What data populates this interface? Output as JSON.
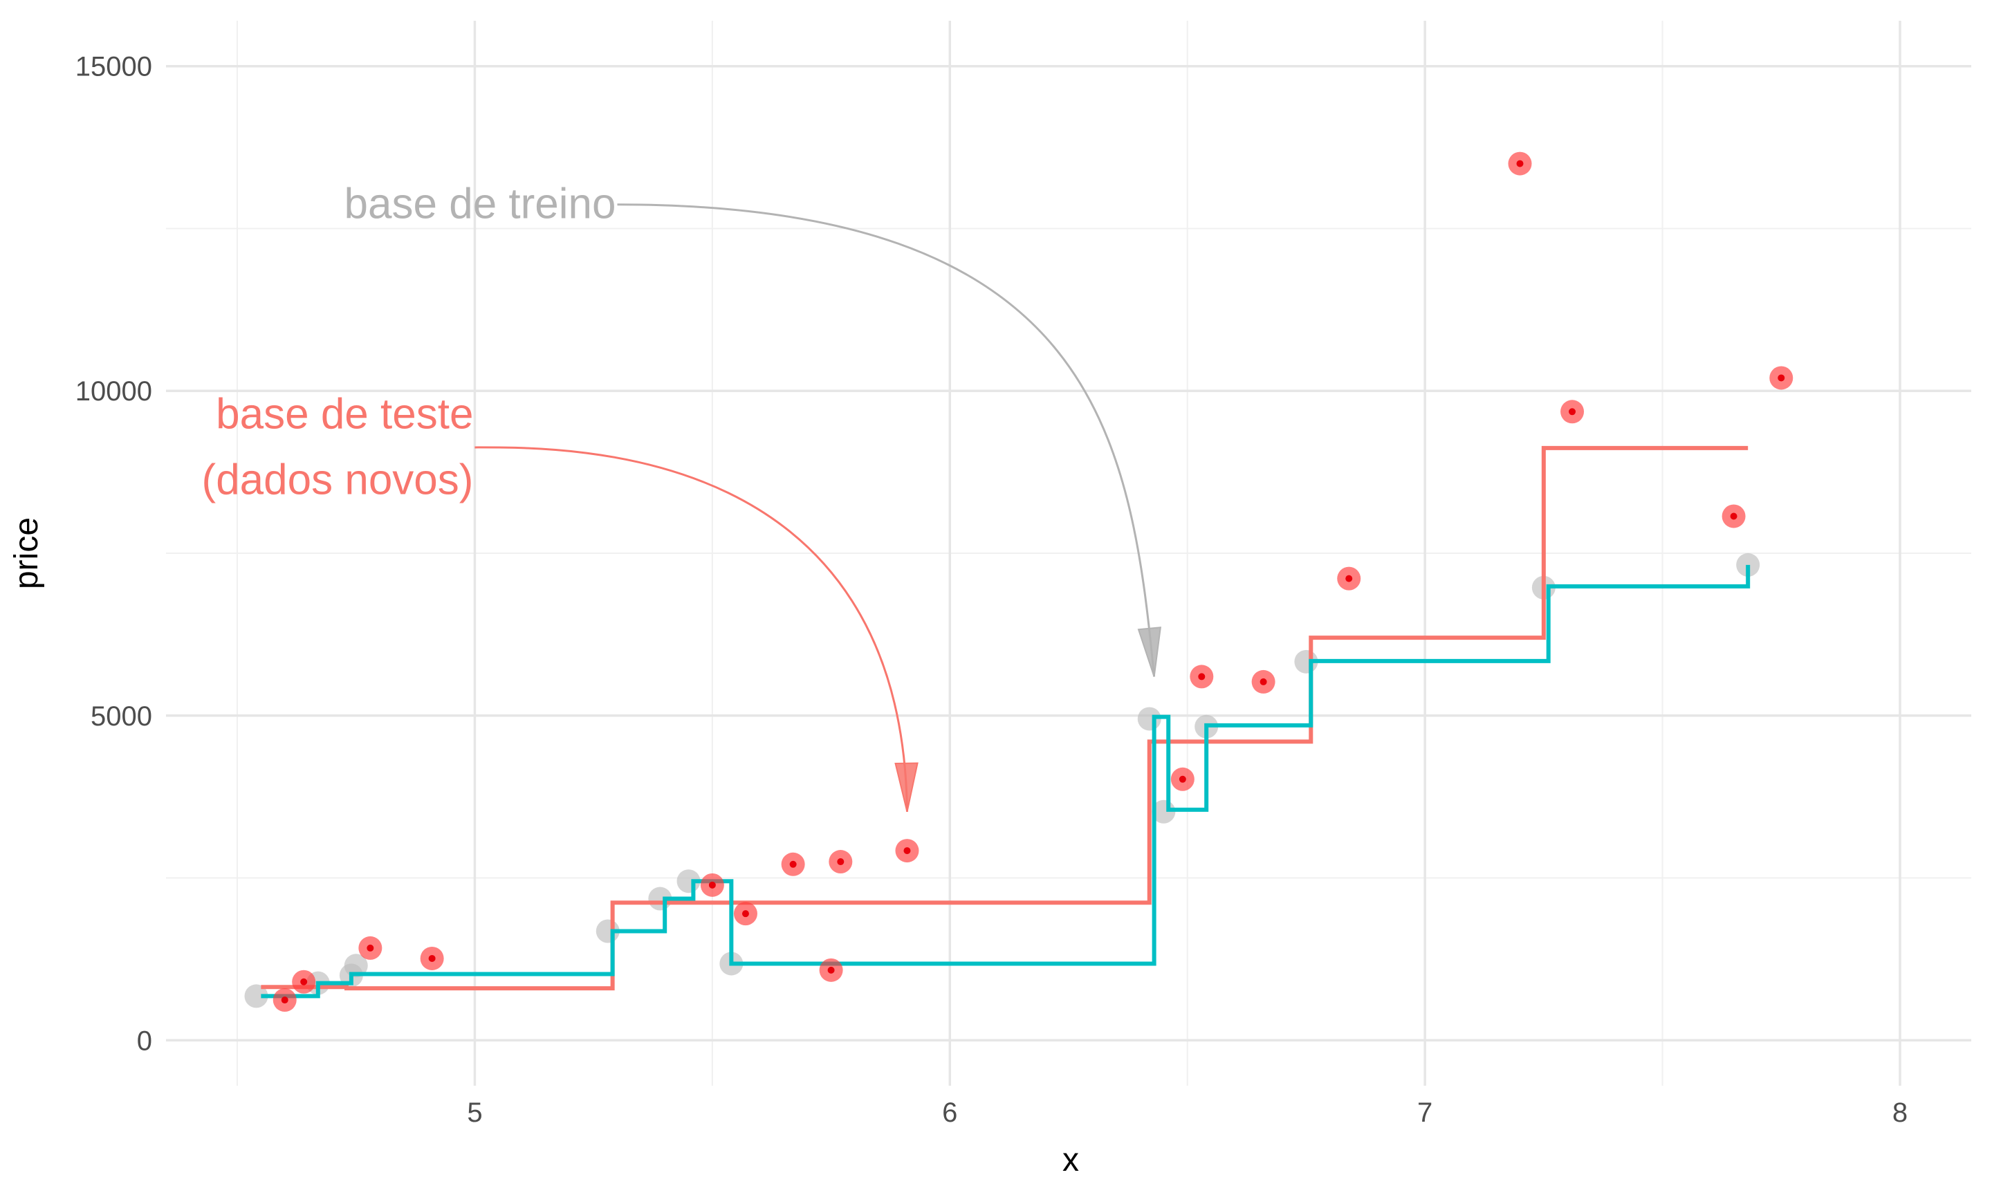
{
  "chart_data": {
    "type": "scatter",
    "xlabel": "x",
    "ylabel": "price",
    "xlim": [
      4.35,
      8.15
    ],
    "ylim": [
      -700,
      15700
    ],
    "x_ticks": [
      5,
      6,
      7,
      8
    ],
    "y_ticks": [
      0,
      5000,
      10000,
      15000
    ],
    "x_minor_ticks": [
      4.5,
      5.5,
      6.5,
      7.5
    ],
    "y_minor_ticks": [
      2500,
      7500,
      12500
    ],
    "grid": true,
    "colors": {
      "train": "#bdbdbd",
      "test": "#ff3b3b",
      "test_inner": "#e8000b",
      "step_red": "#f8766d",
      "step_teal": "#00bfc4"
    },
    "series": [
      {
        "kind": "points",
        "x": [
          4.54,
          4.67,
          4.74,
          4.75,
          5.28,
          5.39,
          5.45,
          5.54,
          6.42,
          6.45,
          6.54,
          6.75,
          7.25,
          7.68
        ],
        "values": [
          680,
          880,
          1000,
          1150,
          1680,
          2180,
          2450,
          1180,
          4950,
          3520,
          4830,
          5830,
          6970,
          7320
        ]
      },
      {
        "kind": "points",
        "x": [
          4.6,
          4.64,
          4.78,
          4.91,
          5.5,
          5.57,
          5.67,
          5.75,
          5.77,
          5.91,
          6.49,
          6.53,
          6.66,
          6.84,
          7.2,
          7.31,
          7.65,
          7.75
        ],
        "values": [
          620,
          900,
          1420,
          1260,
          2390,
          1950,
          2710,
          1080,
          2750,
          2920,
          4020,
          5600,
          5520,
          7110,
          13500,
          9680,
          8070,
          10200
        ]
      },
      {
        "kind": "step",
        "x": [
          4.55,
          4.73,
          4.73,
          5.29,
          5.29,
          6.42,
          6.42,
          6.76,
          6.76,
          7.25,
          7.25,
          7.68
        ],
        "values": [
          820,
          820,
          800,
          800,
          2120,
          2120,
          4600,
          4600,
          6200,
          6200,
          9120,
          9120
        ]
      },
      {
        "kind": "step",
        "x": [
          4.55,
          4.67,
          4.67,
          4.74,
          4.74,
          5.29,
          5.29,
          5.4,
          5.4,
          5.46,
          5.46,
          5.54,
          5.54,
          6.43,
          6.43,
          6.46,
          6.46,
          6.54,
          6.54,
          6.76,
          6.76,
          7.26,
          7.26,
          7.68,
          7.68
        ],
        "values": [
          680,
          680,
          880,
          880,
          1020,
          1020,
          1680,
          1680,
          2180,
          2180,
          2450,
          2450,
          1180,
          1180,
          4980,
          4980,
          3550,
          3550,
          4850,
          4850,
          5840,
          5840,
          6990,
          6990,
          7320
        ]
      }
    ],
    "annotations": [
      {
        "lines": [
          "base de treino"
        ],
        "color": "#b3b3b3",
        "arrow": {
          "from": [
            5.3,
            12870
          ],
          "c1": [
            6.3,
            12870
          ],
          "c2": [
            6.38,
            9400
          ],
          "to": [
            6.43,
            5600
          ]
        }
      },
      {
        "lines": [
          "base de teste",
          "(dados novos)"
        ],
        "color": "#f8766d",
        "arrow": {
          "from": [
            5.0,
            9130
          ],
          "c1": [
            5.2,
            9130
          ],
          "c2": [
            5.9,
            9200
          ],
          "to": [
            5.91,
            3520
          ]
        }
      }
    ]
  }
}
